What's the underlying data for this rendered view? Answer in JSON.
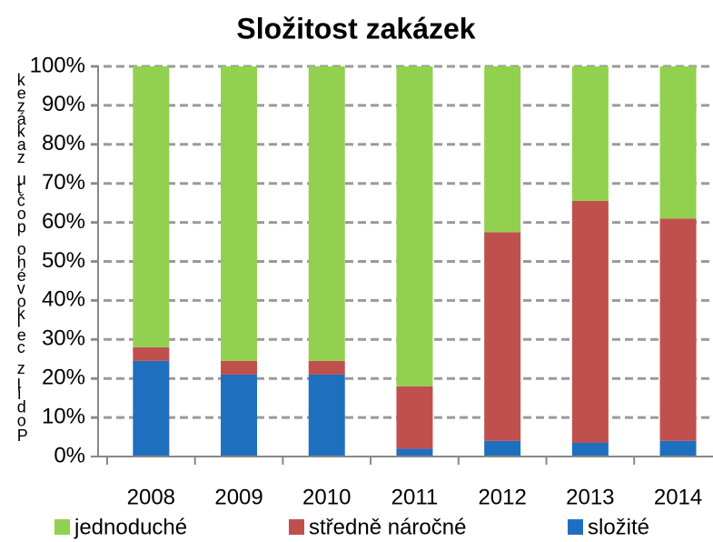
{
  "chart_data": {
    "type": "stacked_bar",
    "title": "Složitost zakázek",
    "y_label": "Podíl z celkového počtu zakázek",
    "categories": [
      "2008",
      "2009",
      "2010",
      "2011",
      "2012",
      "2013",
      "2014"
    ],
    "series": [
      {
        "name": "složité",
        "color": "#1f6fbf",
        "values": [
          24.5,
          21,
          21,
          2,
          4,
          3.5,
          4
        ]
      },
      {
        "name": "středně náročné",
        "color": "#c0504d",
        "values": [
          3.5,
          3.5,
          3.5,
          16,
          53.5,
          62,
          57
        ]
      },
      {
        "name": "jednoduché",
        "color": "#92d050",
        "values": [
          72,
          75.5,
          75.5,
          82,
          42.5,
          34.5,
          39
        ]
      }
    ],
    "legend_order": [
      2,
      1,
      0
    ],
    "ylim": [
      0,
      100
    ],
    "yticks": [
      {
        "value": 0,
        "label": "0%"
      },
      {
        "value": 10,
        "label": "10%"
      },
      {
        "value": 20,
        "label": "20%"
      },
      {
        "value": 30,
        "label": "30%"
      },
      {
        "value": 40,
        "label": "40%"
      },
      {
        "value": 50,
        "label": "50%"
      },
      {
        "value": 60,
        "label": "60%"
      },
      {
        "value": 70,
        "label": "70%"
      },
      {
        "value": 80,
        "label": "80%"
      },
      {
        "value": 90,
        "label": "90%"
      },
      {
        "value": 100,
        "label": "100%"
      }
    ],
    "grid": true
  }
}
